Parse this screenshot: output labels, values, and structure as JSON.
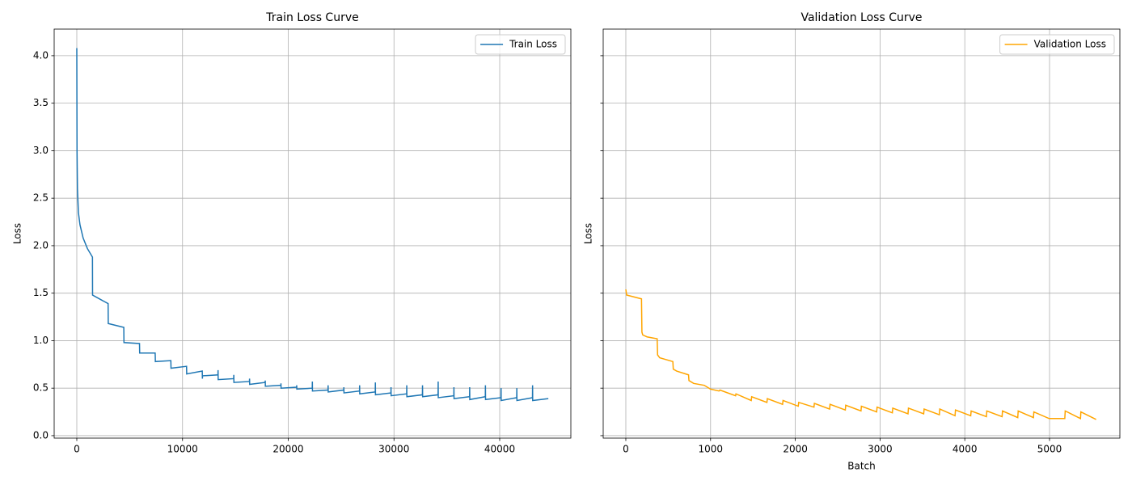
{
  "chart_data": [
    {
      "type": "line",
      "title": "Train Loss Curve",
      "ylabel": "Loss",
      "grid": true,
      "legend": "upper right",
      "xlim": [
        -2141,
        46730
      ],
      "ylim": [
        -0.026,
        4.28
      ],
      "xticks": [
        0,
        10000,
        20000,
        30000,
        40000
      ],
      "yticks": [
        {
          "value": 0,
          "label": "0.0"
        },
        {
          "value": 0.5,
          "label": "0.5"
        },
        {
          "value": 1,
          "label": "1.0"
        },
        {
          "value": 1.5,
          "label": "1.5"
        },
        {
          "value": 2,
          "label": "2.0"
        },
        {
          "value": 2.5,
          "label": "2.5"
        },
        {
          "value": 3,
          "label": "3.0"
        },
        {
          "value": 3.5,
          "label": "3.5"
        },
        {
          "value": 4,
          "label": "4.0"
        }
      ],
      "x": [
        0,
        20,
        60,
        150,
        300,
        600,
        1000,
        1480,
        1490,
        2960,
        2975,
        4445,
        4460,
        5930,
        5945,
        7410,
        7420,
        7430,
        8895,
        8910,
        10380,
        10395,
        11865,
        11880,
        11890,
        13350,
        13360,
        13370,
        14840,
        14850,
        14860,
        16330,
        16340,
        16350,
        17815,
        17825,
        17835,
        19300,
        19310,
        19320,
        20790,
        20800,
        20810,
        22270,
        22280,
        22290,
        23760,
        23770,
        23780,
        25250,
        25260,
        25270,
        26740,
        26750,
        26760,
        28230,
        28240,
        28250,
        29710,
        29720,
        29730,
        31200,
        31210,
        31220,
        32690,
        32700,
        32710,
        34170,
        34180,
        34190,
        35660,
        35670,
        35680,
        37150,
        37160,
        37170,
        38640,
        38650,
        38660,
        40120,
        40130,
        40140,
        41610,
        41620,
        41630,
        43100,
        43110,
        43120,
        44600
      ],
      "series": [
        {
          "name": "Train Loss",
          "color": "#1f77b4",
          "values": [
            4.08,
            3.0,
            2.6,
            2.35,
            2.22,
            2.08,
            1.97,
            1.88,
            1.48,
            1.39,
            1.18,
            1.14,
            0.98,
            0.97,
            0.87,
            0.87,
            0.84,
            0.78,
            0.79,
            0.71,
            0.73,
            0.65,
            0.68,
            0.6,
            0.63,
            0.64,
            0.69,
            0.59,
            0.6,
            0.64,
            0.56,
            0.57,
            0.6,
            0.54,
            0.56,
            0.58,
            0.52,
            0.53,
            0.55,
            0.5,
            0.51,
            0.53,
            0.49,
            0.5,
            0.57,
            0.47,
            0.48,
            0.53,
            0.46,
            0.48,
            0.51,
            0.45,
            0.47,
            0.53,
            0.44,
            0.46,
            0.56,
            0.43,
            0.45,
            0.51,
            0.42,
            0.44,
            0.53,
            0.41,
            0.43,
            0.53,
            0.41,
            0.43,
            0.57,
            0.4,
            0.42,
            0.51,
            0.39,
            0.41,
            0.51,
            0.38,
            0.41,
            0.53,
            0.38,
            0.4,
            0.5,
            0.37,
            0.4,
            0.5,
            0.37,
            0.4,
            0.53,
            0.37,
            0.39
          ]
        }
      ]
    },
    {
      "type": "line",
      "title": "Validation Loss Curve",
      "xlabel": "Batch",
      "ylabel": "Loss",
      "grid": true,
      "legend": "upper right",
      "xlim": [
        -267,
        5830
      ],
      "ylim": [
        -0.026,
        4.28
      ],
      "xticks": [
        0,
        1000,
        2000,
        3000,
        4000,
        5000
      ],
      "x": [
        0,
        10,
        185,
        190,
        200,
        250,
        370,
        375,
        400,
        555,
        560,
        600,
        740,
        745,
        800,
        925,
        1000,
        1100,
        1110,
        1295,
        1300,
        1480,
        1485,
        1665,
        1670,
        1850,
        1855,
        2035,
        2040,
        2220,
        2225,
        2405,
        2410,
        2590,
        2595,
        2775,
        2780,
        2960,
        2965,
        3145,
        3150,
        3330,
        3335,
        3515,
        3520,
        3700,
        3705,
        3885,
        3890,
        4070,
        4075,
        4255,
        4260,
        4440,
        4445,
        4625,
        4630,
        4810,
        4815,
        4995,
        5180,
        5185,
        5365,
        5370,
        5550
      ],
      "series": [
        {
          "name": "Validation Loss",
          "color": "#ffa500",
          "values": [
            1.54,
            1.48,
            1.44,
            1.09,
            1.06,
            1.04,
            1.02,
            0.85,
            0.82,
            0.78,
            0.7,
            0.68,
            0.64,
            0.58,
            0.55,
            0.53,
            0.49,
            0.47,
            0.48,
            0.42,
            0.44,
            0.37,
            0.41,
            0.35,
            0.39,
            0.33,
            0.37,
            0.31,
            0.35,
            0.3,
            0.34,
            0.28,
            0.33,
            0.27,
            0.32,
            0.26,
            0.31,
            0.25,
            0.3,
            0.24,
            0.29,
            0.23,
            0.29,
            0.23,
            0.28,
            0.22,
            0.28,
            0.21,
            0.27,
            0.21,
            0.26,
            0.2,
            0.26,
            0.2,
            0.26,
            0.19,
            0.26,
            0.19,
            0.25,
            0.18,
            0.18,
            0.26,
            0.18,
            0.25,
            0.17
          ]
        }
      ]
    }
  ]
}
